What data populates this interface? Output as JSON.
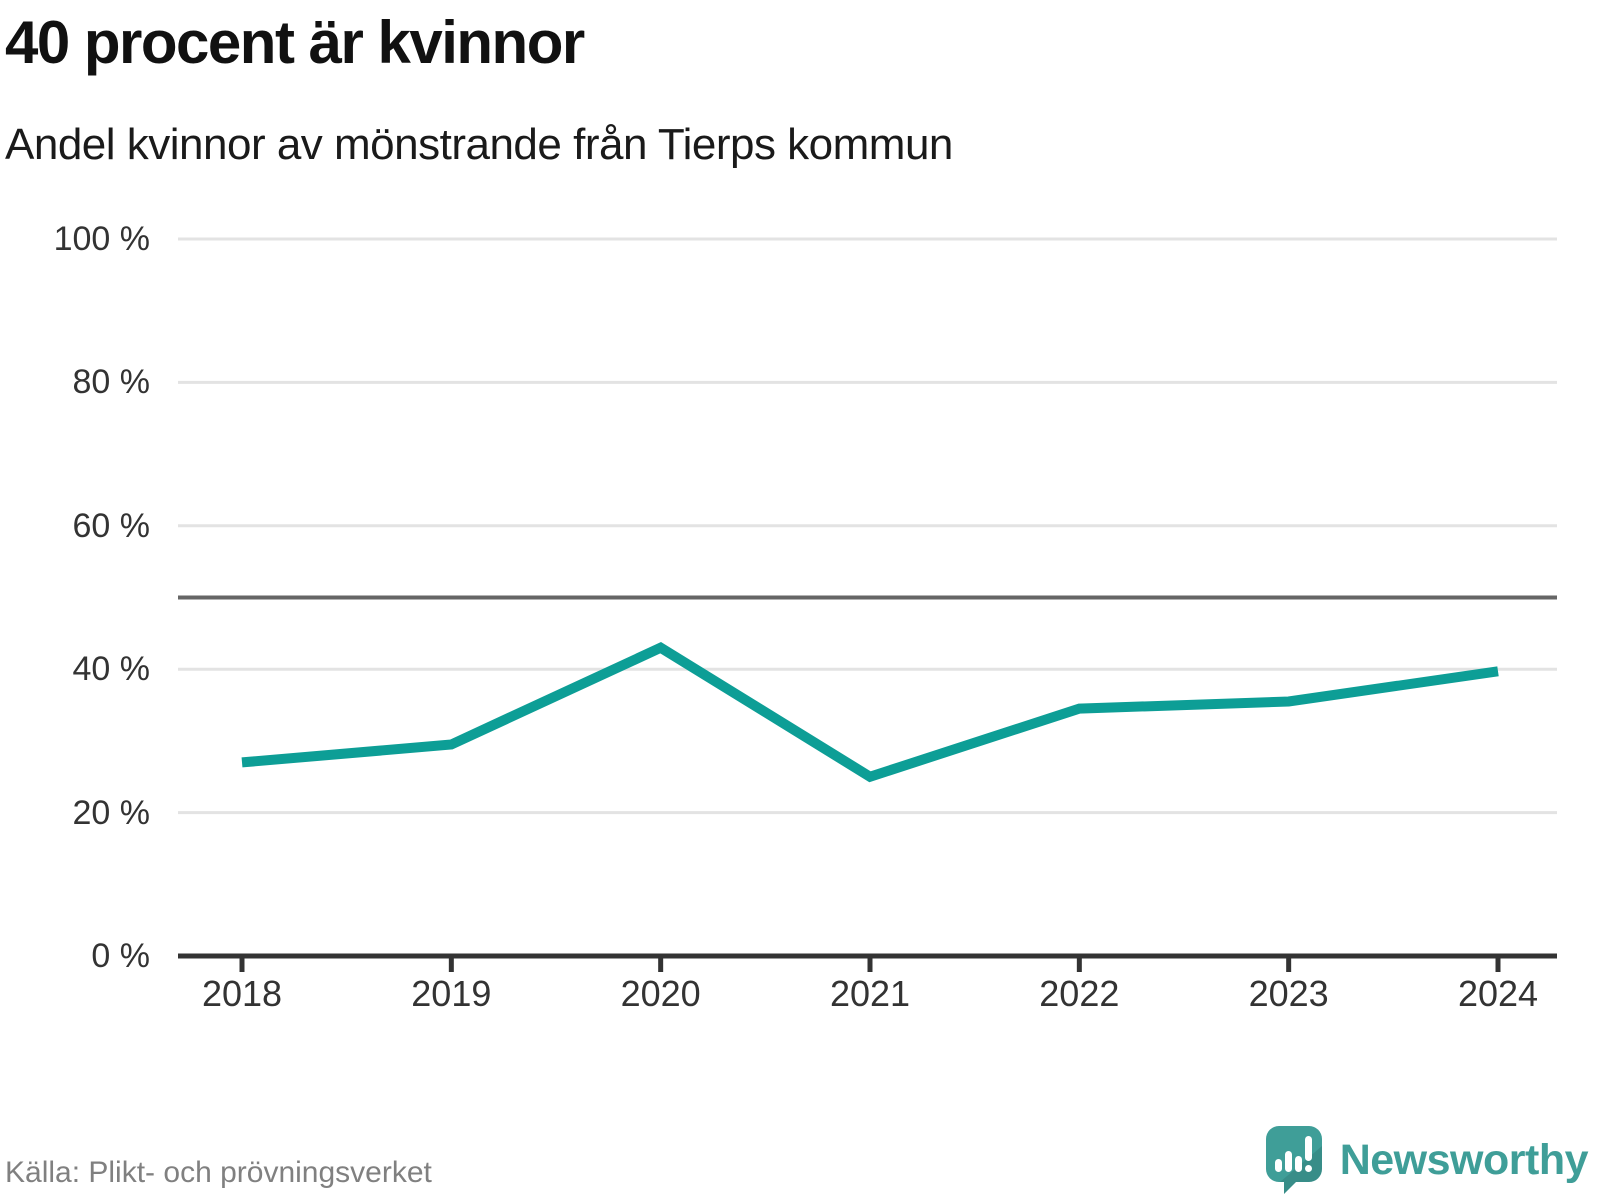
{
  "header": {
    "title": "40 procent är kvinnor",
    "subtitle": "Andel kvinnor av mönstrande från Tierps kommun"
  },
  "footer": {
    "source": "Källa: Plikt- och prövningsverket",
    "brand": "Newsworthy"
  },
  "chart_data": {
    "type": "line",
    "title": "40 procent är kvinnor",
    "subtitle": "Andel kvinnor av mönstrande från Tierps kommun",
    "categories": [
      "2018",
      "2019",
      "2020",
      "2021",
      "2022",
      "2023",
      "2024"
    ],
    "values": [
      27,
      29.5,
      43,
      25,
      34.5,
      35.5,
      39.7
    ],
    "unit": "%",
    "xlabel": "",
    "ylabel": "",
    "ylim": [
      0,
      100
    ],
    "ytick_values": [
      0,
      20,
      40,
      60,
      80,
      100
    ],
    "ytick_labels": [
      "0 %",
      "20 %",
      "40 %",
      "60 %",
      "80 %",
      "100 %"
    ],
    "reference_line_y": 50,
    "grid": "horizontal",
    "legend": "none"
  },
  "colors": {
    "line": "#0d9e96",
    "brand": "#3f9e98",
    "grid": "#e3e3e3",
    "reference": "#666666",
    "axis": "#333333",
    "title_text": "#111111",
    "tick_text": "#333333",
    "source_text": "#808080",
    "background": "#ffffff"
  }
}
